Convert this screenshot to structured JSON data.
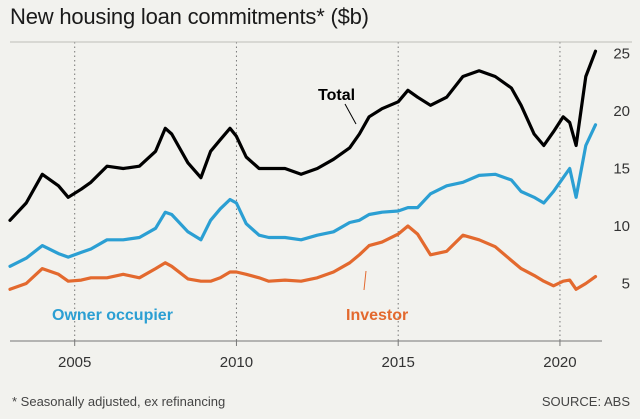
{
  "title": "New housing loan commitments* ($b)",
  "footnote": "* Seasonally adjusted, ex refinancing",
  "source": "SOURCE: ABS",
  "chart_data": {
    "type": "line",
    "title": "New housing loan commitments* ($b)",
    "xlabel": "",
    "ylabel": "",
    "xlim": [
      2003.0,
      2021.3
    ],
    "ylim": [
      0,
      26
    ],
    "x_ticks": [
      2005,
      2010,
      2015,
      2020
    ],
    "x_tick_labels": [
      "2005",
      "2010",
      "2015",
      "2020"
    ],
    "y_ticks": [
      5,
      10,
      15,
      20,
      25
    ],
    "y_tick_labels": [
      "5",
      "10",
      "15",
      "20",
      "25"
    ],
    "grid": "vertical dotted at x ticks",
    "y_axis_position": "right",
    "series": [
      {
        "name": "Total",
        "color": "#000000",
        "x": [
          2003.0,
          2003.5,
          2004.0,
          2004.5,
          2004.8,
          2005.2,
          2005.5,
          2006.0,
          2006.5,
          2007.0,
          2007.5,
          2007.8,
          2008.0,
          2008.5,
          2008.9,
          2009.2,
          2009.5,
          2009.8,
          2010.0,
          2010.3,
          2010.7,
          2011.0,
          2011.5,
          2012.0,
          2012.5,
          2013.0,
          2013.5,
          2013.8,
          2014.1,
          2014.5,
          2015.0,
          2015.3,
          2015.6,
          2016.0,
          2016.5,
          2017.0,
          2017.5,
          2018.0,
          2018.5,
          2018.8,
          2019.2,
          2019.5,
          2019.8,
          2020.1,
          2020.3,
          2020.5,
          2020.8,
          2021.1
        ],
        "values": [
          10.5,
          12.0,
          14.5,
          13.5,
          12.5,
          13.2,
          13.8,
          15.2,
          15.0,
          15.2,
          16.5,
          18.5,
          18.0,
          15.5,
          14.2,
          16.5,
          17.5,
          18.5,
          17.8,
          16.0,
          15.0,
          15.0,
          15.0,
          14.5,
          15.0,
          15.8,
          16.8,
          18.0,
          19.5,
          20.2,
          20.8,
          21.8,
          21.2,
          20.5,
          21.2,
          23.0,
          23.5,
          23.0,
          22.0,
          20.5,
          18.0,
          17.0,
          18.2,
          19.5,
          19.0,
          17.0,
          23.0,
          25.2
        ]
      },
      {
        "name": "Owner occupier",
        "color": "#2b9fd3",
        "x": [
          2003.0,
          2003.5,
          2004.0,
          2004.5,
          2004.8,
          2005.2,
          2005.5,
          2006.0,
          2006.5,
          2007.0,
          2007.5,
          2007.8,
          2008.0,
          2008.5,
          2008.9,
          2009.2,
          2009.5,
          2009.8,
          2010.0,
          2010.3,
          2010.7,
          2011.0,
          2011.5,
          2012.0,
          2012.5,
          2013.0,
          2013.5,
          2013.8,
          2014.1,
          2014.5,
          2015.0,
          2015.3,
          2015.6,
          2016.0,
          2016.5,
          2017.0,
          2017.5,
          2018.0,
          2018.5,
          2018.8,
          2019.2,
          2019.5,
          2019.8,
          2020.1,
          2020.3,
          2020.5,
          2020.8,
          2021.1
        ],
        "values": [
          6.5,
          7.2,
          8.3,
          7.6,
          7.3,
          7.7,
          8.0,
          8.8,
          8.8,
          9.0,
          9.8,
          11.2,
          11.0,
          9.5,
          8.8,
          10.5,
          11.5,
          12.3,
          12.0,
          10.2,
          9.2,
          9.0,
          9.0,
          8.8,
          9.2,
          9.5,
          10.3,
          10.5,
          11.0,
          11.2,
          11.3,
          11.6,
          11.6,
          12.8,
          13.5,
          13.8,
          14.4,
          14.5,
          14.0,
          13.0,
          12.5,
          12.0,
          13.0,
          14.2,
          15.0,
          12.5,
          17.0,
          18.8
        ]
      },
      {
        "name": "Investor",
        "color": "#e3692e",
        "x": [
          2003.0,
          2003.5,
          2004.0,
          2004.5,
          2004.8,
          2005.2,
          2005.5,
          2006.0,
          2006.5,
          2007.0,
          2007.5,
          2007.8,
          2008.0,
          2008.5,
          2008.9,
          2009.2,
          2009.5,
          2009.8,
          2010.0,
          2010.3,
          2010.7,
          2011.0,
          2011.5,
          2012.0,
          2012.5,
          2013.0,
          2013.5,
          2013.8,
          2014.1,
          2014.5,
          2015.0,
          2015.3,
          2015.6,
          2016.0,
          2016.5,
          2017.0,
          2017.5,
          2018.0,
          2018.5,
          2018.8,
          2019.2,
          2019.5,
          2019.8,
          2020.1,
          2020.3,
          2020.5,
          2020.8,
          2021.1
        ],
        "values": [
          4.5,
          5.0,
          6.3,
          5.8,
          5.2,
          5.3,
          5.5,
          5.5,
          5.8,
          5.5,
          6.3,
          6.8,
          6.5,
          5.4,
          5.2,
          5.2,
          5.5,
          6.0,
          6.0,
          5.8,
          5.5,
          5.2,
          5.3,
          5.2,
          5.5,
          6.0,
          6.8,
          7.5,
          8.3,
          8.6,
          9.3,
          10.0,
          9.3,
          7.5,
          7.8,
          9.2,
          8.8,
          8.2,
          7.0,
          6.3,
          5.7,
          5.2,
          4.8,
          5.2,
          5.3,
          4.5,
          5.0,
          5.6
        ]
      }
    ]
  }
}
